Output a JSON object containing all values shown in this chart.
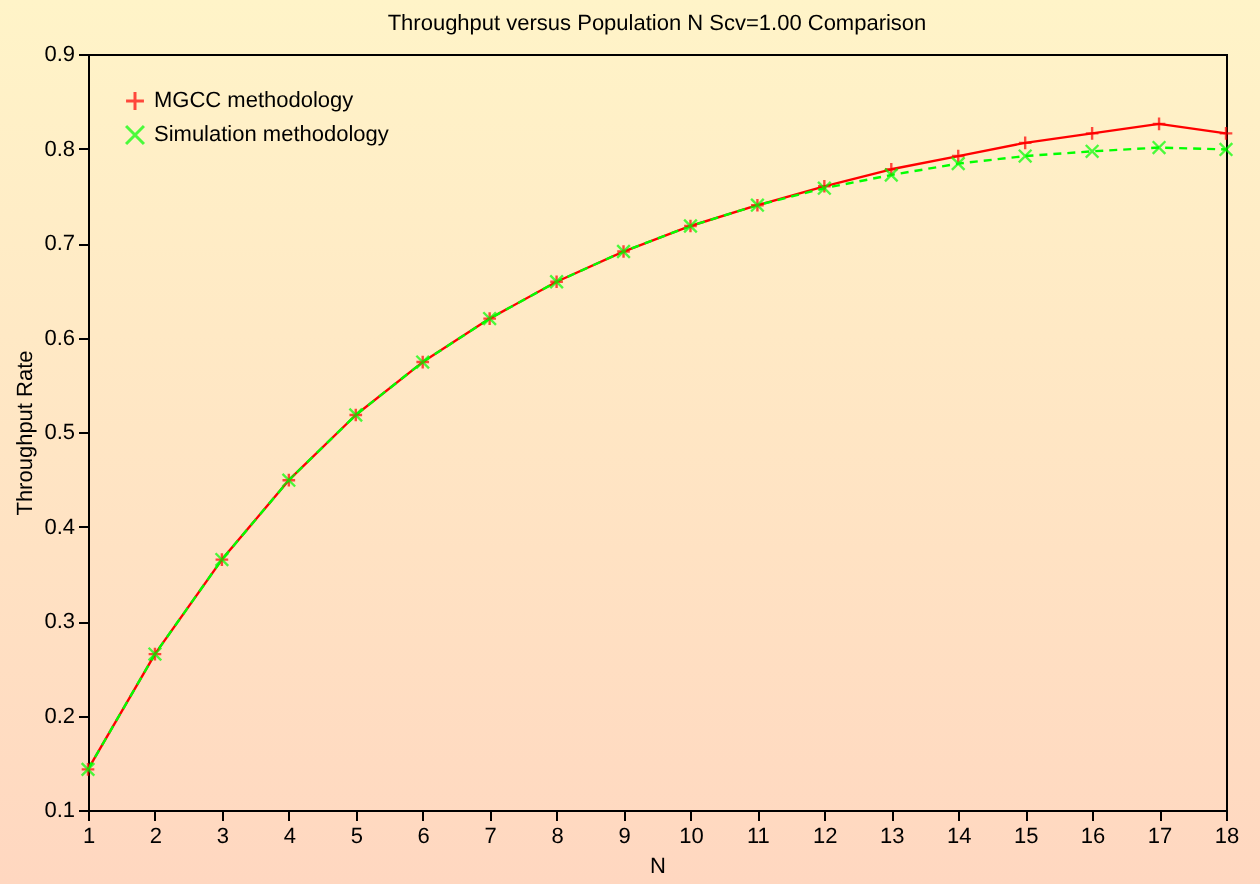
{
  "chart_data": {
    "type": "line",
    "title": "Throughput versus Population N Scv=1.00 Comparison",
    "xlabel": "N",
    "ylabel": "Throughput Rate",
    "x": [
      1,
      2,
      3,
      4,
      5,
      6,
      7,
      8,
      9,
      10,
      11,
      12,
      13,
      14,
      15,
      16,
      17,
      18
    ],
    "series": [
      {
        "name": "MGCC methodology",
        "color": "#ff0000",
        "line_style": "solid",
        "values": [
          0.143,
          0.265,
          0.365,
          0.449,
          0.518,
          0.574,
          0.62,
          0.659,
          0.691,
          0.718,
          0.74,
          0.76,
          0.778,
          0.792,
          0.806,
          0.816,
          0.826,
          0.816
        ]
      },
      {
        "name": "Simulation methodology",
        "color": "#00ff00",
        "line_style": "dashed",
        "values": [
          0.143,
          0.265,
          0.365,
          0.449,
          0.518,
          0.574,
          0.62,
          0.659,
          0.691,
          0.718,
          0.74,
          0.758,
          0.772,
          0.784,
          0.792,
          0.797,
          0.801,
          0.799
        ]
      }
    ],
    "xlim": [
      1,
      18
    ],
    "xticks": [
      1,
      2,
      3,
      4,
      5,
      6,
      7,
      8,
      9,
      10,
      11,
      12,
      13,
      14,
      15,
      16,
      17,
      18
    ],
    "ylim": [
      0.1,
      0.9
    ],
    "yticks": [
      0.1,
      0.2,
      0.3,
      0.4,
      0.5,
      0.6,
      0.7,
      0.8,
      0.9
    ],
    "grid": false,
    "legend": "top left",
    "marker": "cross"
  }
}
